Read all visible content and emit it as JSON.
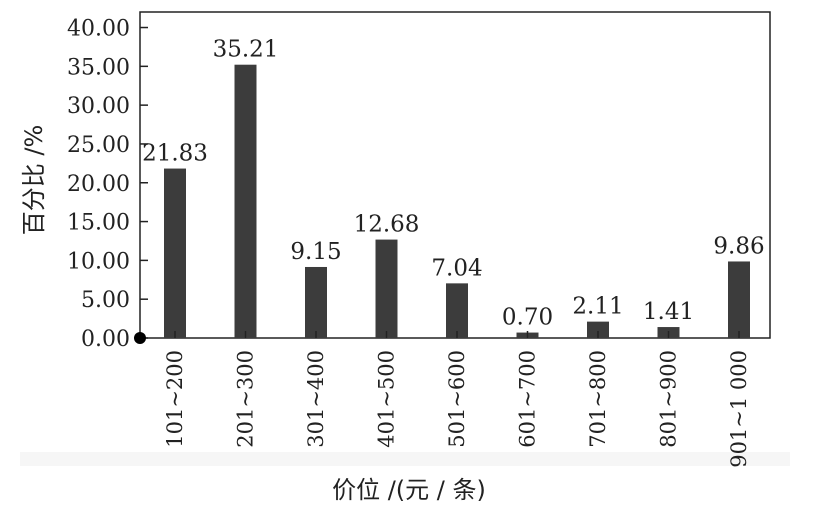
{
  "chart_data": {
    "type": "bar",
    "categories": [
      "101~200",
      "201~300",
      "301~400",
      "401~500",
      "501~600",
      "601~700",
      "701~800",
      "801~900",
      "901~1 000"
    ],
    "values": [
      21.83,
      35.21,
      9.15,
      12.68,
      7.04,
      0.7,
      2.11,
      1.41,
      9.86
    ],
    "value_labels": [
      "21.83",
      "35.21",
      "9.15",
      "12.68",
      "7.04",
      "0.70",
      "2.11",
      "1.41",
      "9.86"
    ],
    "y_ticks": [
      "0.00",
      "5.00",
      "10.00",
      "15.00",
      "20.00",
      "25.00",
      "30.00",
      "35.00",
      "40.00"
    ],
    "ylim": [
      0,
      42
    ],
    "ylabel": "百分比 /%",
    "xlabel": "价位 /(元 / 条)",
    "bar_color": "#3c3c3c",
    "grid": false
  }
}
